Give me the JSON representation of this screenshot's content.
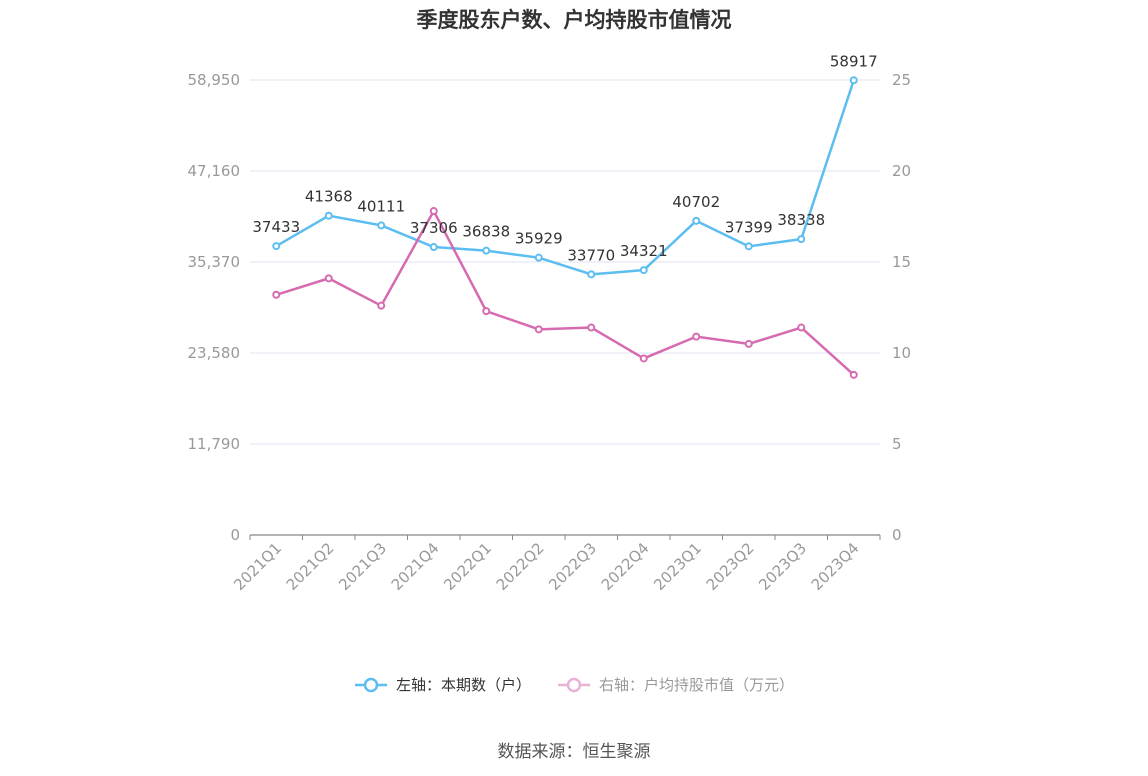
{
  "title": "季度股东户数、户均持股市值情况",
  "legend": {
    "left_label": "左轴：本期数（户）",
    "right_label": "右轴：户均持股市值（万元）"
  },
  "source": "数据来源：恒生聚源",
  "colors": {
    "left_series": "#5bbdf0",
    "right_series": "#d66bb0",
    "grid": "#dde6f0",
    "axis_text": "#999999",
    "label_text": "#333333"
  },
  "chart_data": {
    "type": "line",
    "title": "季度股东户数、户均持股市值情况",
    "categories": [
      "2021Q1",
      "2021Q2",
      "2021Q3",
      "2021Q4",
      "2022Q1",
      "2022Q2",
      "2022Q3",
      "2022Q4",
      "2023Q1",
      "2023Q2",
      "2023Q3",
      "2023Q4"
    ],
    "left_axis": {
      "ticks": [
        "0",
        "11,790",
        "23,580",
        "35,370",
        "47,160",
        "58,950"
      ],
      "ylim": [
        0,
        58950
      ]
    },
    "right_axis": {
      "ticks": [
        "0",
        "5",
        "10",
        "15",
        "20",
        "25"
      ],
      "ylim": [
        0,
        25
      ]
    },
    "series": [
      {
        "name": "左轴：本期数（户）",
        "axis": "left",
        "values": [
          37433,
          41368,
          40111,
          37306,
          36838,
          35929,
          33770,
          34321,
          40702,
          37399,
          38338,
          58917
        ],
        "labels": [
          "37433",
          "41368",
          "40111",
          "37306",
          "36838",
          "35929",
          "33770",
          "34321",
          "40702",
          "37399",
          "38338",
          "58917"
        ]
      },
      {
        "name": "右轴：户均持股市值（万元）",
        "axis": "right",
        "values": [
          13.2,
          14.1,
          12.6,
          17.8,
          12.3,
          11.3,
          11.4,
          9.7,
          10.9,
          10.5,
          11.4,
          8.8
        ]
      }
    ],
    "grid": true,
    "legend_position": "bottom"
  }
}
